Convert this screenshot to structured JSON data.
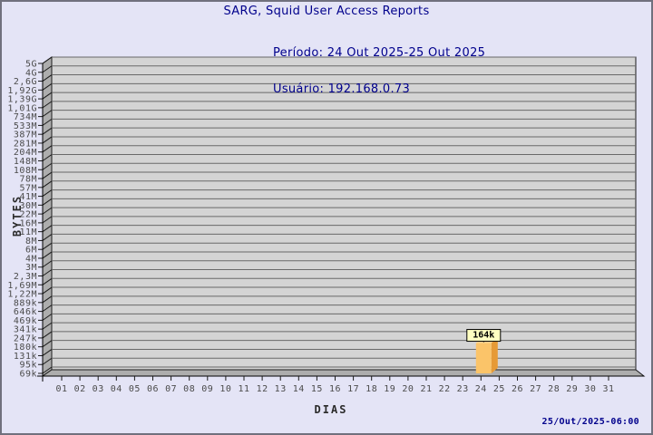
{
  "header": {
    "title": "SARG, Squid User Access Reports",
    "period": "Período: 24 Out 2025-25 Out 2025",
    "user": "Usuário: 192.168.0.73"
  },
  "footer": {
    "timestamp": "25/Out/2025-06:00"
  },
  "chart_data": {
    "type": "bar",
    "title": "SARG, Squid User Access Reports",
    "subtitle_lines": [
      "Período: 24 Out 2025-25 Out 2025",
      "Usuário: 192.168.0.73"
    ],
    "xlabel": "DIAS",
    "ylabel": "BYTES",
    "y_scale": "log",
    "grid": true,
    "y_tick_labels": [
      "5G",
      "4G",
      "2,6G",
      "1,92G",
      "1,39G",
      "1,01G",
      "734M",
      "533M",
      "387M",
      "281M",
      "204M",
      "148M",
      "108M",
      "78M",
      "57M",
      "41M",
      "30M",
      "22M",
      "16M",
      "11M",
      "8M",
      "6M",
      "4M",
      "3M",
      "2,3M",
      "1,69M",
      "1,22M",
      "889k",
      "646k",
      "469k",
      "341k",
      "247k",
      "180k",
      "131k",
      "95k",
      "69k"
    ],
    "categories": [
      "01",
      "02",
      "03",
      "04",
      "05",
      "06",
      "07",
      "08",
      "09",
      "10",
      "11",
      "12",
      "13",
      "14",
      "15",
      "16",
      "17",
      "18",
      "19",
      "20",
      "21",
      "22",
      "23",
      "24",
      "25",
      "26",
      "27",
      "28",
      "29",
      "30",
      "31"
    ],
    "bars": [
      {
        "category": "24",
        "value": 164000,
        "label": "164k"
      }
    ],
    "colors": {
      "page_bg": "#E4E4F6",
      "plot_bg": "#D4D4D4",
      "grid": "#696969",
      "wall": "#ADADAD",
      "edge": "#1a1a1a",
      "bar_front": "#FBC469",
      "bar_side": "#E69A36",
      "bar_top": "#FDD791",
      "label_box_bg": "#FFFFC2",
      "title_text": "#00008C",
      "tick_text": "#4B4B4B"
    }
  }
}
